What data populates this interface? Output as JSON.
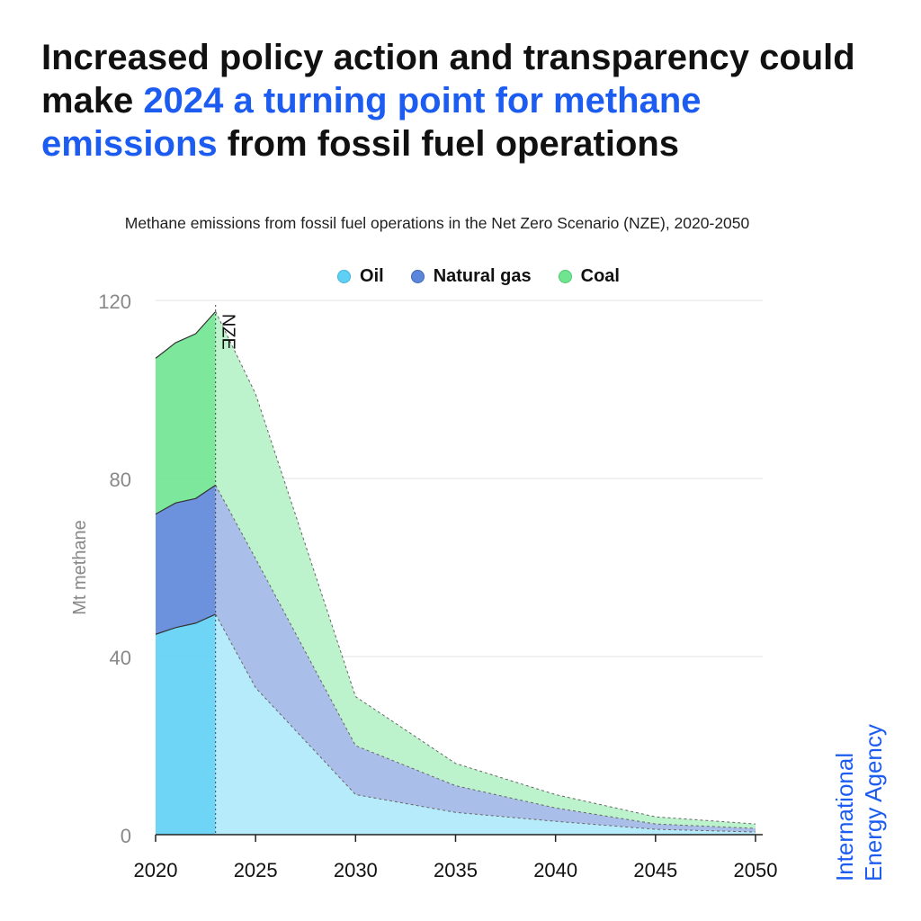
{
  "headline": {
    "part1": "Increased policy action and transparency could make ",
    "highlight": "2024 a turning point for methane emissions",
    "part2": " from fossil fuel operations"
  },
  "colors": {
    "oil": "#5fd0f5",
    "natural_gas": "#5c86d9",
    "coal": "#6fe590",
    "accent": "#1d5cf0"
  },
  "logo": {
    "line1": "International",
    "line2": "Energy Agency"
  },
  "chart_data": {
    "type": "area",
    "stacked": true,
    "title": "Methane emissions from fossil fuel operations in the Net Zero Scenario (NZE), 2020-2050",
    "ylabel": "Mt methane",
    "xlabel": "",
    "ylim": [
      0,
      120
    ],
    "yticks": [
      0,
      40,
      80,
      120
    ],
    "xlim": [
      2020,
      2050
    ],
    "xticks": [
      2020,
      2025,
      2030,
      2035,
      2040,
      2045,
      2050
    ],
    "grid": true,
    "legend_position": "top",
    "annotation": {
      "label": "NZE",
      "x": 2023
    },
    "historical": {
      "x": [
        2020,
        2021,
        2022,
        2023
      ],
      "series": [
        {
          "name": "Oil",
          "values": [
            45,
            46.5,
            47.5,
            49.5
          ]
        },
        {
          "name": "Natural gas",
          "values": [
            27,
            28,
            28,
            29
          ]
        },
        {
          "name": "Coal",
          "values": [
            35,
            36,
            37,
            39
          ]
        }
      ]
    },
    "projection": {
      "x": [
        2023,
        2025,
        2030,
        2035,
        2040,
        2045,
        2050
      ],
      "series": [
        {
          "name": "Oil",
          "values": [
            49.5,
            33,
            9,
            5,
            3,
            1.2,
            0.6
          ]
        },
        {
          "name": "Natural gas",
          "values": [
            29,
            29,
            11,
            6,
            3,
            1.2,
            0.8
          ]
        },
        {
          "name": "Coal",
          "values": [
            39,
            37,
            11,
            5,
            3,
            1.6,
            1.0
          ]
        }
      ]
    }
  }
}
